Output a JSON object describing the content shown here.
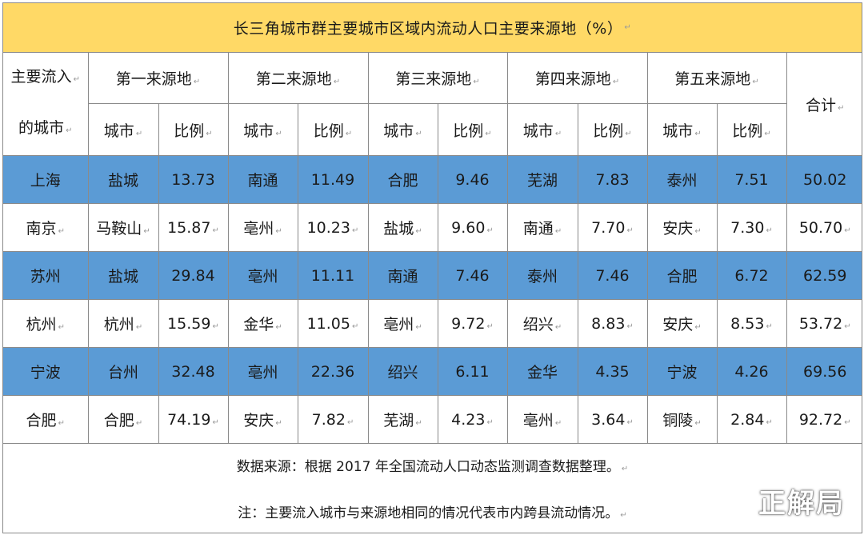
{
  "title": "长三角城市群主要城市区域内流动人口主要来源地（%）",
  "edit_mark": "↵",
  "header": {
    "row_head_line1": "主要流入",
    "row_head_line2": "的城市",
    "sources": [
      "第一来源地",
      "第二来源地",
      "第三来源地",
      "第四来源地",
      "第五来源地"
    ],
    "city_label": "城市",
    "ratio_label": "比例",
    "total_label": "合计"
  },
  "rows": [
    {
      "city": "上海",
      "highlight": true,
      "sources": [
        {
          "city": "盐城",
          "ratio": "13.73"
        },
        {
          "city": "南通",
          "ratio": "11.49"
        },
        {
          "city": "合肥",
          "ratio": "9.46"
        },
        {
          "city": "芜湖",
          "ratio": "7.83"
        },
        {
          "city": "泰州",
          "ratio": "7.51"
        }
      ],
      "total": "50.02"
    },
    {
      "city": "南京",
      "highlight": false,
      "sources": [
        {
          "city": "马鞍山",
          "ratio": "15.87"
        },
        {
          "city": "亳州",
          "ratio": "10.23"
        },
        {
          "city": "盐城",
          "ratio": "9.60"
        },
        {
          "city": "南通",
          "ratio": "7.70"
        },
        {
          "city": "安庆",
          "ratio": "7.30"
        }
      ],
      "total": "50.70"
    },
    {
      "city": "苏州",
      "highlight": true,
      "sources": [
        {
          "city": "盐城",
          "ratio": "29.84"
        },
        {
          "city": "亳州",
          "ratio": "11.11"
        },
        {
          "city": "南通",
          "ratio": "7.46"
        },
        {
          "city": "泰州",
          "ratio": "7.46"
        },
        {
          "city": "合肥",
          "ratio": "6.72"
        }
      ],
      "total": "62.59"
    },
    {
      "city": "杭州",
      "highlight": false,
      "sources": [
        {
          "city": "杭州",
          "ratio": "15.59"
        },
        {
          "city": "金华",
          "ratio": "11.05"
        },
        {
          "city": "亳州",
          "ratio": "9.72"
        },
        {
          "city": "绍兴",
          "ratio": "8.83"
        },
        {
          "city": "安庆",
          "ratio": "8.53"
        }
      ],
      "total": "53.72"
    },
    {
      "city": "宁波",
      "highlight": true,
      "sources": [
        {
          "city": "台州",
          "ratio": "32.48"
        },
        {
          "city": "亳州",
          "ratio": "22.36"
        },
        {
          "city": "绍兴",
          "ratio": "6.11"
        },
        {
          "city": "金华",
          "ratio": "4.35"
        },
        {
          "city": "宁波",
          "ratio": "4.26"
        }
      ],
      "total": "69.56"
    },
    {
      "city": "合肥",
      "highlight": false,
      "sources": [
        {
          "city": "合肥",
          "ratio": "74.19"
        },
        {
          "city": "安庆",
          "ratio": "7.82"
        },
        {
          "city": "芜湖",
          "ratio": "4.23"
        },
        {
          "city": "亳州",
          "ratio": "3.64"
        },
        {
          "city": "铜陵",
          "ratio": "2.84"
        }
      ],
      "total": "92.72"
    }
  ],
  "footer": {
    "source_note": "数据来源：根据 2017 年全国流动人口动态监测调查数据整理。",
    "note": "注：主要流入城市与来源地相同的情况代表市内跨县流动情况。"
  },
  "watermark": "正解局",
  "colors": {
    "title_bg": "#ffd966",
    "highlight_row": "#5b9bd5",
    "border": "#8a8a8a"
  }
}
